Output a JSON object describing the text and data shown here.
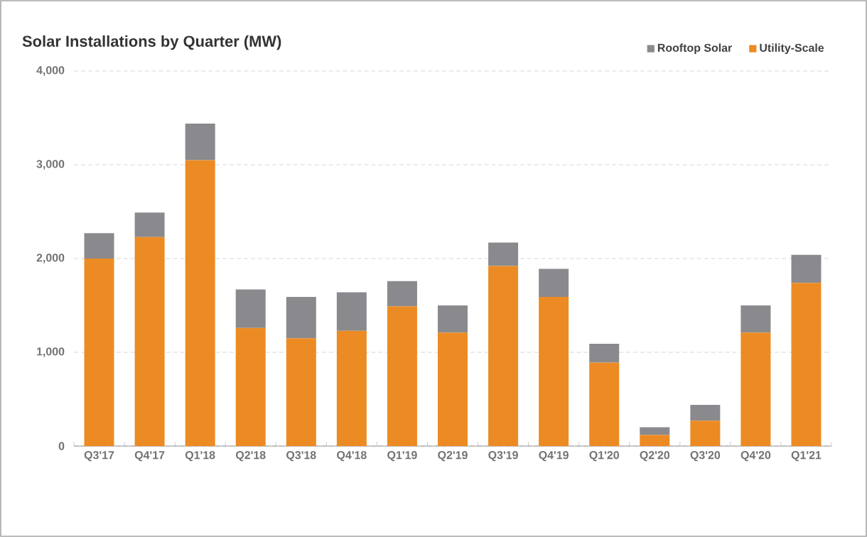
{
  "chart_data": {
    "type": "bar",
    "title": "Solar Installations by Quarter (MW)",
    "stacked": true,
    "categories": [
      "Q3'17",
      "Q4'17",
      "Q1'18",
      "Q2'18",
      "Q3'18",
      "Q4'18",
      "Q1'19",
      "Q2'19",
      "Q3'19",
      "Q4'19",
      "Q1'20",
      "Q2'20",
      "Q3'20",
      "Q4'20",
      "Q1'21"
    ],
    "series": [
      {
        "name": "Utility-Scale",
        "color": "#ec8b23",
        "values": [
          2000,
          2230,
          3050,
          1260,
          1150,
          1230,
          1490,
          1210,
          1920,
          1590,
          890,
          120,
          270,
          1210,
          1740
        ]
      },
      {
        "name": "Rooftop Solar",
        "color": "#8a8a8e",
        "values": [
          270,
          260,
          390,
          410,
          440,
          410,
          270,
          290,
          250,
          300,
          200,
          80,
          170,
          290,
          300
        ]
      }
    ],
    "ylim": [
      0,
      4000
    ],
    "yticks": [
      0,
      {
        "value": 1000,
        "label": "1,000"
      },
      {
        "value": 2000,
        "label": "2,000"
      },
      {
        "value": 3000,
        "label": "3,000"
      },
      {
        "value": 4000,
        "label": "4,000"
      }
    ],
    "grid": "y",
    "legend": "top right"
  }
}
